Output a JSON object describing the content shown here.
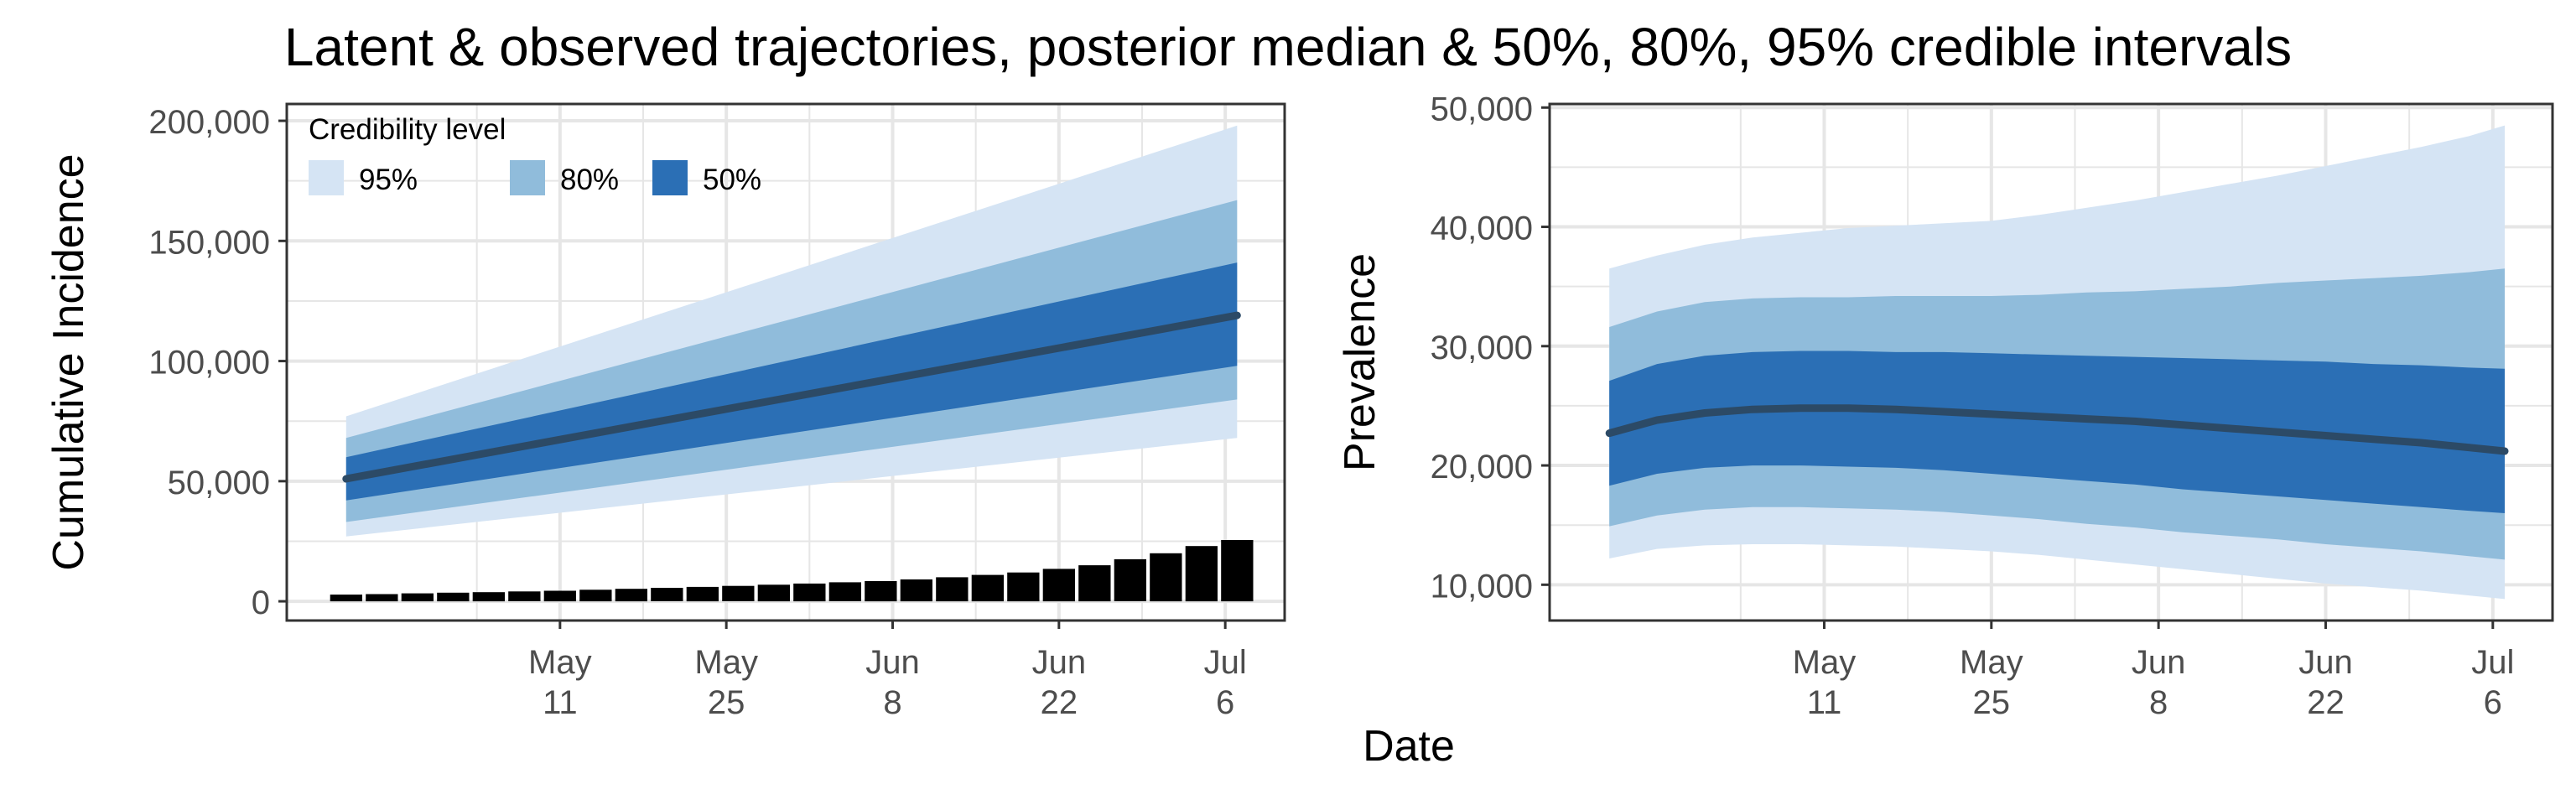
{
  "title": "Latent & observed trajectories, posterior median & 50%, 80%, 95% credible intervals",
  "xlabel": "Date",
  "colors": {
    "band95": "#d5e4f4",
    "band80": "#90bcdb",
    "band50": "#2b6fb5",
    "median": "#2c4a66",
    "bars": "#000000",
    "grid": "#e6e6e6",
    "axis_text": "#4d4d4d"
  },
  "chart_data": [
    {
      "type": "area",
      "ylabel": "Cumulative Incidence",
      "x_ticks": [
        {
          "value": "2020-05-11",
          "label": [
            "May",
            "11"
          ]
        },
        {
          "value": "2020-05-25",
          "label": [
            "May",
            "25"
          ]
        },
        {
          "value": "2020-06-08",
          "label": [
            "Jun",
            "8"
          ]
        },
        {
          "value": "2020-06-22",
          "label": [
            "Jun",
            "22"
          ]
        },
        {
          "value": "2020-07-06",
          "label": [
            "Jul",
            "6"
          ]
        }
      ],
      "xlim": [
        "2020-04-18",
        "2020-07-11"
      ],
      "ylim": [
        -8000,
        207000
      ],
      "y_ticks": [
        0,
        50000,
        100000,
        150000,
        200000
      ],
      "y_tick_labels": [
        "0",
        "50,000",
        "100,000",
        "150,000",
        "200,000"
      ],
      "grid": true,
      "legend": {
        "title": "Credibility level",
        "placement": "top-left",
        "entries": [
          {
            "label": "95%",
            "band": "band95"
          },
          {
            "label": "80%",
            "band": "band80"
          },
          {
            "label": "50%",
            "band": "band50"
          }
        ]
      },
      "dates": [
        "2020-04-23",
        "2020-07-07"
      ],
      "median": [
        51000,
        119000
      ],
      "band50": {
        "lower": [
          42000,
          98000
        ],
        "upper": [
          60000,
          141000
        ]
      },
      "band80": {
        "lower": [
          33000,
          84000
        ],
        "upper": [
          68000,
          167000
        ]
      },
      "band95": {
        "lower": [
          27000,
          68000
        ],
        "upper": [
          77000,
          198000
        ]
      },
      "observed_bars": {
        "name": "observed",
        "dates": [
          "2020-04-23",
          "2020-04-26",
          "2020-04-29",
          "2020-05-02",
          "2020-05-05",
          "2020-05-08",
          "2020-05-11",
          "2020-05-14",
          "2020-05-17",
          "2020-05-20",
          "2020-05-23",
          "2020-05-26",
          "2020-05-29",
          "2020-06-01",
          "2020-06-04",
          "2020-06-07",
          "2020-06-10",
          "2020-06-13",
          "2020-06-16",
          "2020-06-19",
          "2020-06-22",
          "2020-06-25",
          "2020-06-28",
          "2020-07-01",
          "2020-07-04",
          "2020-07-07"
        ],
        "values": [
          2800,
          3000,
          3300,
          3600,
          3800,
          4100,
          4400,
          4800,
          5200,
          5600,
          6000,
          6400,
          6900,
          7400,
          7900,
          8400,
          9100,
          10000,
          11000,
          12000,
          13500,
          15000,
          17500,
          20000,
          23000,
          25500
        ]
      }
    },
    {
      "type": "area",
      "ylabel": "Prevalence",
      "x_ticks": [
        {
          "value": "2020-05-11",
          "label": [
            "May",
            "11"
          ]
        },
        {
          "value": "2020-05-25",
          "label": [
            "May",
            "25"
          ]
        },
        {
          "value": "2020-06-08",
          "label": [
            "Jun",
            "8"
          ]
        },
        {
          "value": "2020-06-22",
          "label": [
            "Jun",
            "22"
          ]
        },
        {
          "value": "2020-07-06",
          "label": [
            "Jul",
            "6"
          ]
        }
      ],
      "xlim": [
        "2020-04-18",
        "2020-07-11"
      ],
      "ylim": [
        7000,
        50300
      ],
      "y_ticks": [
        10000,
        20000,
        30000,
        40000,
        50000
      ],
      "y_tick_labels": [
        "10,000",
        "20,000",
        "30,000",
        "40,000",
        "50,000"
      ],
      "grid": true,
      "dates": [
        "2020-04-23",
        "2020-04-27",
        "2020-05-01",
        "2020-05-05",
        "2020-05-09",
        "2020-05-13",
        "2020-05-17",
        "2020-05-21",
        "2020-05-25",
        "2020-05-29",
        "2020-06-02",
        "2020-06-06",
        "2020-06-10",
        "2020-06-14",
        "2020-06-18",
        "2020-06-22",
        "2020-06-26",
        "2020-06-30",
        "2020-07-04",
        "2020-07-07"
      ],
      "median": [
        22700,
        23800,
        24400,
        24700,
        24800,
        24800,
        24700,
        24500,
        24300,
        24100,
        23900,
        23700,
        23400,
        23100,
        22800,
        22500,
        22200,
        21900,
        21500,
        21200
      ],
      "band50": {
        "lower": [
          18300,
          19300,
          19800,
          20000,
          20000,
          19900,
          19800,
          19600,
          19300,
          19000,
          18700,
          18400,
          18000,
          17700,
          17400,
          17100,
          16800,
          16500,
          16200,
          16000
        ],
        "upper": [
          27100,
          28500,
          29200,
          29500,
          29600,
          29600,
          29500,
          29500,
          29400,
          29300,
          29200,
          29100,
          29000,
          28900,
          28800,
          28700,
          28500,
          28400,
          28200,
          28100
        ]
      },
      "band80": {
        "lower": [
          14900,
          15800,
          16300,
          16500,
          16500,
          16400,
          16300,
          16100,
          15800,
          15500,
          15100,
          14800,
          14400,
          14100,
          13800,
          13400,
          13100,
          12800,
          12400,
          12100
        ],
        "upper": [
          31600,
          32900,
          33700,
          34000,
          34100,
          34100,
          34200,
          34200,
          34200,
          34300,
          34500,
          34600,
          34800,
          35000,
          35300,
          35500,
          35700,
          35900,
          36200,
          36500
        ]
      },
      "band95": {
        "lower": [
          12200,
          13000,
          13300,
          13400,
          13400,
          13300,
          13200,
          13000,
          12800,
          12500,
          12100,
          11700,
          11300,
          10900,
          10500,
          10100,
          9800,
          9500,
          9100,
          8800
        ],
        "upper": [
          36500,
          37600,
          38500,
          39100,
          39500,
          39900,
          40100,
          40300,
          40500,
          41000,
          41600,
          42200,
          42900,
          43600,
          44300,
          45100,
          45900,
          46700,
          47600,
          48500
        ]
      }
    }
  ]
}
